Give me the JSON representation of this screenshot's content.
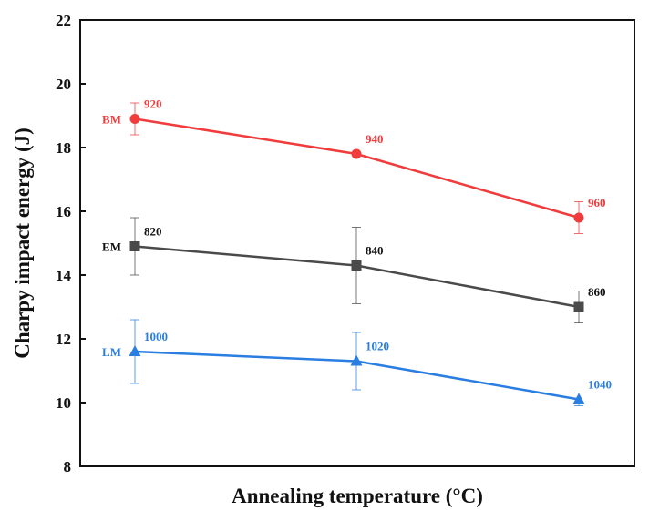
{
  "chart_data": {
    "type": "line",
    "title": "",
    "xlabel": "Annealing temperature (°C)",
    "ylabel": "Charpy impact energy (J)",
    "ylim": [
      8,
      22
    ],
    "yticks": [
      8,
      10,
      12,
      14,
      16,
      18,
      20,
      22
    ],
    "grid": false,
    "error_bars": true,
    "series": [
      {
        "name": "BM",
        "color": "#f03c3c",
        "marker": "circle",
        "points": [
          {
            "label": "920",
            "y": 18.9,
            "err": 0.5
          },
          {
            "label": "940",
            "y": 17.8,
            "err": 0
          },
          {
            "label": "960",
            "y": 15.8,
            "err": 0.5
          }
        ]
      },
      {
        "name": "EM",
        "color": "#4a4a4a",
        "marker": "square",
        "points": [
          {
            "label": "820",
            "y": 14.9,
            "err": 0.9
          },
          {
            "label": "840",
            "y": 14.3,
            "err": 1.2
          },
          {
            "label": "860",
            "y": 13.0,
            "err": 0.5
          }
        ]
      },
      {
        "name": "LM",
        "color": "#2a7de1",
        "marker": "triangle",
        "points": [
          {
            "label": "1000",
            "y": 11.6,
            "err": 1.0
          },
          {
            "label": "1020",
            "y": 11.3,
            "err": 0.9
          },
          {
            "label": "1040",
            "y": 10.1,
            "err": 0.2
          }
        ]
      }
    ]
  }
}
